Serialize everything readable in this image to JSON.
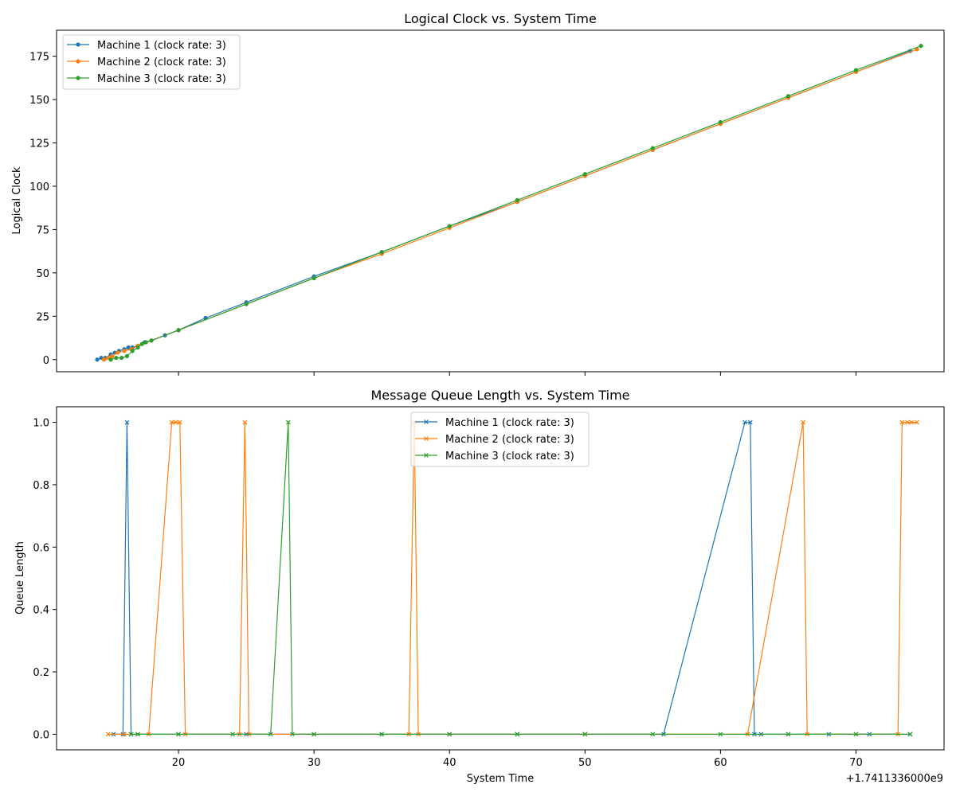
{
  "chart_data": [
    {
      "type": "line",
      "title": "Logical Clock vs. System Time",
      "xlabel": "",
      "ylabel": "Logical Clock",
      "xlim": [
        11,
        76.5
      ],
      "ylim": [
        -7,
        190
      ],
      "x_offset_label": "",
      "xticks": [
        20,
        30,
        40,
        50,
        60,
        70
      ],
      "xticklabels": [],
      "yticks": [
        0,
        25,
        50,
        75,
        100,
        125,
        150,
        175
      ],
      "grid": false,
      "legend_loc": "upper left",
      "marker": "circle",
      "series": [
        {
          "name": "Machine 1 (clock rate: 3)",
          "color": "#1f77b4",
          "x": [
            14.0,
            14.3,
            14.6,
            15.0,
            15.3,
            15.6,
            16.0,
            16.3,
            16.6,
            17.0,
            17.5,
            18.0,
            19.0,
            20.0,
            22.0,
            25.0,
            30.0,
            35.0,
            40.0,
            45.0,
            50.0,
            55.0,
            60.0,
            65.0,
            70.0,
            74.0
          ],
          "y": [
            0,
            1,
            1,
            3,
            4,
            5,
            6,
            7,
            7,
            8,
            10,
            11,
            14,
            17,
            24,
            33,
            48,
            62,
            77,
            91,
            106,
            121,
            136,
            151,
            166,
            178
          ]
        },
        {
          "name": "Machine 2 (clock rate: 3)",
          "color": "#ff7f0e",
          "x": [
            14.5,
            14.8,
            15.1,
            15.5,
            16.0,
            16.5,
            17.0,
            18.0,
            20.0,
            25.0,
            30.0,
            35.0,
            40.0,
            45.0,
            50.0,
            55.0,
            60.0,
            65.0,
            70.0,
            74.5
          ],
          "y": [
            0,
            1,
            2,
            4,
            5,
            6,
            8,
            11,
            17,
            32,
            47,
            61,
            76,
            91,
            106,
            121,
            136,
            151,
            166,
            179
          ]
        },
        {
          "name": "Machine 3 (clock rate: 3)",
          "color": "#2ca02c",
          "x": [
            15.0,
            15.4,
            15.8,
            16.2,
            16.6,
            17.0,
            17.3,
            17.6,
            18.0,
            20.0,
            25.0,
            30.0,
            35.0,
            40.0,
            45.0,
            50.0,
            55.0,
            60.0,
            65.0,
            70.0,
            74.8
          ],
          "y": [
            0,
            1,
            1,
            2,
            5,
            7,
            9,
            10,
            11,
            17,
            32,
            47,
            62,
            77,
            92,
            107,
            122,
            137,
            152,
            167,
            181
          ]
        }
      ]
    },
    {
      "type": "line",
      "title": "Message Queue Length vs. System Time",
      "xlabel": "System Time",
      "ylabel": "Queue Length",
      "xlim": [
        11,
        76.5
      ],
      "ylim": [
        -0.05,
        1.05
      ],
      "x_offset_label": "+1.7411336000e9",
      "xticks": [
        20,
        30,
        40,
        50,
        60,
        70
      ],
      "xticklabels": [
        "20",
        "30",
        "40",
        "50",
        "60",
        "70"
      ],
      "yticks": [
        0.0,
        0.2,
        0.4,
        0.6,
        0.8,
        1.0
      ],
      "yticklabels": [
        "0.0",
        "0.2",
        "0.4",
        "0.6",
        "0.8",
        "1.0"
      ],
      "grid": false,
      "legend_loc": "upper center",
      "marker": "x",
      "series": [
        {
          "name": "Machine 1 (clock rate: 3)",
          "color": "#1f77b4",
          "x": [
            15.2,
            15.9,
            16.2,
            16.5,
            17.0,
            20.0,
            25.0,
            30.0,
            35.0,
            40.0,
            45.0,
            50.0,
            55.8,
            61.8,
            62.2,
            62.5,
            63.0,
            65.0,
            68.0,
            71.0,
            74.0
          ],
          "y": [
            0,
            0,
            1,
            0,
            0,
            0,
            0,
            0,
            0,
            0,
            0,
            0,
            0,
            1,
            1,
            0,
            0,
            0,
            0,
            0,
            0
          ]
        },
        {
          "name": "Machine 2 (clock rate: 3)",
          "color": "#ff7f0e",
          "x": [
            14.8,
            16.0,
            17.8,
            19.5,
            19.8,
            20.1,
            20.5,
            24.5,
            24.9,
            25.2,
            30.0,
            37.0,
            37.4,
            37.7,
            40.0,
            50.0,
            62.0,
            66.1,
            66.4,
            70.0,
            73.1,
            73.4,
            73.8,
            74.1,
            74.5
          ],
          "y": [
            0,
            0,
            0,
            1,
            1,
            1,
            0,
            0,
            1,
            0,
            0,
            0,
            1,
            0,
            0,
            0,
            0,
            1,
            0,
            0,
            0,
            1,
            1,
            1,
            1
          ]
        },
        {
          "name": "Machine 3 (clock rate: 3)",
          "color": "#2ca02c",
          "x": [
            16.5,
            17.0,
            20.0,
            24.0,
            26.8,
            28.1,
            28.4,
            30.0,
            35.0,
            40.0,
            45.0,
            50.0,
            55.0,
            60.0,
            65.0,
            70.0,
            74.0
          ],
          "y": [
            0,
            0,
            0,
            0,
            0,
            1,
            0,
            0,
            0,
            0,
            0,
            0,
            0,
            0,
            0,
            0,
            0
          ]
        }
      ]
    }
  ]
}
